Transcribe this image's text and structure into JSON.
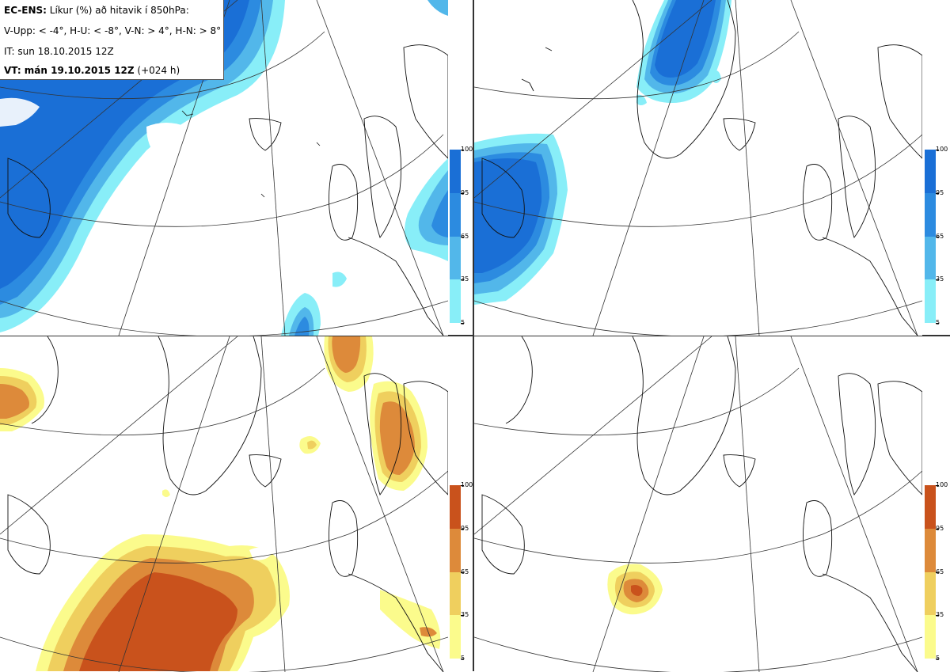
{
  "info": {
    "line1_bold": "EC-ENS:",
    "line1_rest": " Líkur (%) að hitavik í 850hPa:",
    "line2": "V-Upp: < -4°, H-U: < -8°, V-N: > 4°, H-N: > 8°",
    "line3": "IT: sun 18.10.2015 12Z",
    "line4_bold": "VT: mán 19.10.2015 12Z",
    "line4_rest": " (+024 h)"
  },
  "colorbar": {
    "labels": [
      "100",
      "95",
      "65",
      "35",
      "5"
    ],
    "cold_colors": [
      "#1a6fd6",
      "#2c8be0",
      "#52b7ea",
      "#88eef8"
    ],
    "warm_colors": [
      "#c9521c",
      "#dd8a3a",
      "#efcf5e",
      "#fbfb8c"
    ]
  },
  "panels": [
    {
      "id": "top-left",
      "field": "cold"
    },
    {
      "id": "top-right",
      "field": "cold"
    },
    {
      "id": "bottom-left",
      "field": "warm"
    },
    {
      "id": "bottom-right",
      "field": "warm"
    }
  ]
}
